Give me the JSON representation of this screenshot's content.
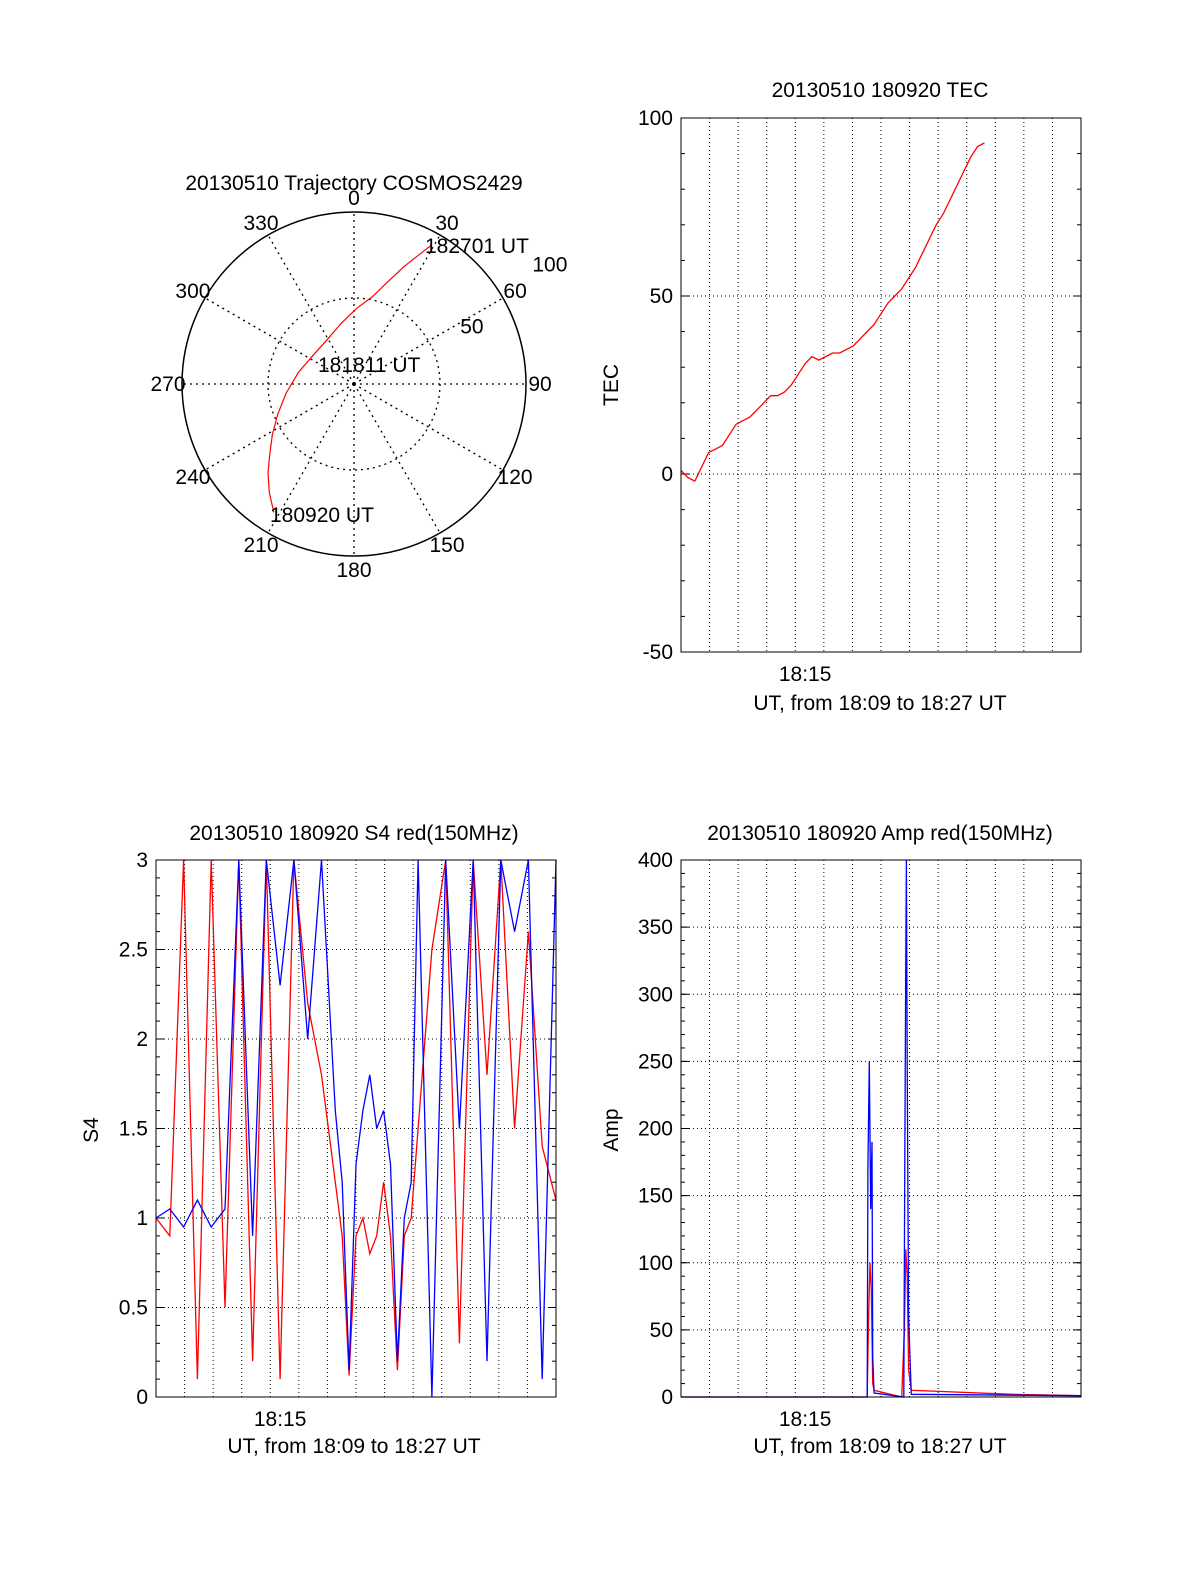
{
  "colors": {
    "red": "#ff0000",
    "blue": "#0000ff",
    "grid": "#000000",
    "background": "#ffffff"
  },
  "chart_data": [
    {
      "id": "trajectory",
      "type": "polar",
      "title": "20130510 Trajectory COSMOS2429",
      "angle_labels": [
        "0",
        "30",
        "60",
        "90",
        "120",
        "150",
        "180",
        "210",
        "240",
        "270",
        "300",
        "330"
      ],
      "angle_values": [
        0,
        30,
        60,
        90,
        120,
        150,
        180,
        210,
        240,
        270,
        300,
        330
      ],
      "radial_labels": [
        "50",
        "100"
      ],
      "radial_values": [
        50,
        100
      ],
      "radial_range": [
        0,
        100
      ],
      "series": [
        {
          "name": "trajectory",
          "color": "#ff0000",
          "points": [
            [
              212,
              88
            ],
            [
              218,
              80
            ],
            [
              224,
              72
            ],
            [
              230,
              64
            ],
            [
              238,
              56
            ],
            [
              248,
              48
            ],
            [
              262,
              40
            ],
            [
              282,
              33
            ],
            [
              306,
              29
            ],
            [
              328,
              30
            ],
            [
              348,
              36
            ],
            [
              2,
              44
            ],
            [
              12,
              52
            ],
            [
              18,
              62
            ],
            [
              23,
              74
            ],
            [
              27,
              85
            ],
            [
              29,
              92
            ]
          ]
        }
      ],
      "annotations": [
        {
          "text": "182701 UT",
          "at": "trajectory end"
        },
        {
          "text": "181811 UT",
          "at": "near center"
        },
        {
          "text": "180920 UT",
          "at": "trajectory start"
        }
      ]
    },
    {
      "id": "tec",
      "type": "line",
      "title": "20130510 180920 TEC",
      "xlabel": "UT, from 18:09 to 18:27 UT",
      "ylabel": "TEC",
      "xlim": [
        18.16,
        18.45
      ],
      "ylim": [
        -50,
        100
      ],
      "yticks": [
        "-50",
        "0",
        "50",
        "100"
      ],
      "ytick_values": [
        -50,
        0,
        50,
        100
      ],
      "xticks": [
        "18:15"
      ],
      "xtick_values": [
        18.25
      ],
      "grid": true,
      "series": [
        {
          "name": "TEC",
          "color": "#ff0000",
          "points": [
            [
              18.16,
              1
            ],
            [
              18.165,
              -1
            ],
            [
              18.17,
              -2
            ],
            [
              18.175,
              2
            ],
            [
              18.18,
              6
            ],
            [
              18.185,
              7
            ],
            [
              18.19,
              8
            ],
            [
              18.195,
              11
            ],
            [
              18.2,
              14
            ],
            [
              18.205,
              15
            ],
            [
              18.21,
              16
            ],
            [
              18.215,
              18
            ],
            [
              18.22,
              20
            ],
            [
              18.225,
              22
            ],
            [
              18.23,
              22
            ],
            [
              18.235,
              23
            ],
            [
              18.24,
              25
            ],
            [
              18.245,
              28
            ],
            [
              18.25,
              31
            ],
            [
              18.255,
              33
            ],
            [
              18.26,
              32
            ],
            [
              18.265,
              33
            ],
            [
              18.27,
              34
            ],
            [
              18.275,
              34
            ],
            [
              18.28,
              35
            ],
            [
              18.285,
              36
            ],
            [
              18.29,
              38
            ],
            [
              18.295,
              40
            ],
            [
              18.3,
              42
            ],
            [
              18.305,
              45
            ],
            [
              18.31,
              48
            ],
            [
              18.315,
              50
            ],
            [
              18.32,
              52
            ],
            [
              18.325,
              55
            ],
            [
              18.33,
              58
            ],
            [
              18.335,
              62
            ],
            [
              18.34,
              66
            ],
            [
              18.345,
              70
            ],
            [
              18.35,
              73
            ],
            [
              18.355,
              77
            ],
            [
              18.36,
              81
            ],
            [
              18.365,
              85
            ],
            [
              18.37,
              89
            ],
            [
              18.375,
              92
            ],
            [
              18.38,
              93
            ]
          ]
        }
      ]
    },
    {
      "id": "s4",
      "type": "line",
      "title": "20130510 180920 S4 red(150MHz)",
      "xlabel": "UT, from 18:09 to 18:27 UT",
      "ylabel": "S4",
      "xlim": [
        18.16,
        18.45
      ],
      "ylim": [
        0,
        3
      ],
      "yticks": [
        "0",
        "0.5",
        "1",
        "1.5",
        "2",
        "2.5",
        "3"
      ],
      "ytick_values": [
        0,
        0.5,
        1,
        1.5,
        2,
        2.5,
        3
      ],
      "xticks": [
        "18:15"
      ],
      "xtick_values": [
        18.25
      ],
      "grid": true,
      "series": [
        {
          "name": "red",
          "color": "#ff0000",
          "points": [
            [
              18.16,
              1.0
            ],
            [
              18.17,
              0.9
            ],
            [
              18.18,
              3.0
            ],
            [
              18.19,
              0.1
            ],
            [
              18.2,
              3.0
            ],
            [
              18.21,
              0.5
            ],
            [
              18.22,
              3.0
            ],
            [
              18.23,
              0.2
            ],
            [
              18.24,
              3.0
            ],
            [
              18.25,
              0.1
            ],
            [
              18.26,
              3.0
            ],
            [
              18.27,
              2.2
            ],
            [
              18.28,
              1.8
            ],
            [
              18.29,
              1.2
            ],
            [
              18.295,
              0.9
            ],
            [
              18.3,
              0.12
            ],
            [
              18.305,
              0.9
            ],
            [
              18.31,
              1.0
            ],
            [
              18.315,
              0.8
            ],
            [
              18.32,
              0.9
            ],
            [
              18.325,
              1.2
            ],
            [
              18.33,
              0.9
            ],
            [
              18.335,
              0.15
            ],
            [
              18.34,
              0.9
            ],
            [
              18.345,
              1.0
            ],
            [
              18.35,
              1.5
            ],
            [
              18.36,
              2.5
            ],
            [
              18.37,
              3.0
            ],
            [
              18.38,
              0.3
            ],
            [
              18.39,
              3.0
            ],
            [
              18.4,
              1.8
            ],
            [
              18.41,
              3.0
            ],
            [
              18.42,
              1.5
            ],
            [
              18.43,
              2.6
            ],
            [
              18.44,
              1.4
            ],
            [
              18.45,
              1.1
            ]
          ]
        },
        {
          "name": "blue",
          "color": "#0000ff",
          "points": [
            [
              18.16,
              1.0
            ],
            [
              18.17,
              1.05
            ],
            [
              18.18,
              0.95
            ],
            [
              18.19,
              1.1
            ],
            [
              18.2,
              0.95
            ],
            [
              18.21,
              1.05
            ],
            [
              18.22,
              3.0
            ],
            [
              18.23,
              0.9
            ],
            [
              18.24,
              3.0
            ],
            [
              18.25,
              2.3
            ],
            [
              18.26,
              3.0
            ],
            [
              18.27,
              2.0
            ],
            [
              18.28,
              3.0
            ],
            [
              18.29,
              1.6
            ],
            [
              18.295,
              1.2
            ],
            [
              18.3,
              0.15
            ],
            [
              18.305,
              1.3
            ],
            [
              18.31,
              1.6
            ],
            [
              18.315,
              1.8
            ],
            [
              18.32,
              1.5
            ],
            [
              18.325,
              1.6
            ],
            [
              18.33,
              1.3
            ],
            [
              18.335,
              0.2
            ],
            [
              18.34,
              1.0
            ],
            [
              18.345,
              1.2
            ],
            [
              18.35,
              3.0
            ],
            [
              18.36,
              0.0
            ],
            [
              18.37,
              3.0
            ],
            [
              18.38,
              1.5
            ],
            [
              18.39,
              3.0
            ],
            [
              18.4,
              0.2
            ],
            [
              18.41,
              3.0
            ],
            [
              18.42,
              2.6
            ],
            [
              18.43,
              3.0
            ],
            [
              18.44,
              0.1
            ],
            [
              18.45,
              3.0
            ]
          ]
        }
      ]
    },
    {
      "id": "amp",
      "type": "line",
      "title": "20130510 180920 Amp red(150MHz)",
      "xlabel": "UT, from 18:09 to 18:27 UT",
      "ylabel": "Amp",
      "xlim": [
        18.16,
        18.45
      ],
      "ylim": [
        0,
        400
      ],
      "yticks": [
        "0",
        "50",
        "100",
        "150",
        "200",
        "250",
        "300",
        "350",
        "400"
      ],
      "ytick_values": [
        0,
        50,
        100,
        150,
        200,
        250,
        300,
        350,
        400
      ],
      "xticks": [
        "18:15"
      ],
      "xtick_values": [
        18.25
      ],
      "grid": true,
      "series": [
        {
          "name": "red",
          "color": "#ff0000",
          "points": [
            [
              18.16,
              0
            ],
            [
              18.295,
              0
            ],
            [
              18.296,
              60
            ],
            [
              18.297,
              100
            ],
            [
              18.298,
              80
            ],
            [
              18.299,
              10
            ],
            [
              18.3,
              5
            ],
            [
              18.32,
              0
            ],
            [
              18.322,
              50
            ],
            [
              18.323,
              110
            ],
            [
              18.324,
              90
            ],
            [
              18.325,
              20
            ],
            [
              18.327,
              5
            ],
            [
              18.4,
              2
            ],
            [
              18.45,
              1
            ]
          ]
        },
        {
          "name": "blue",
          "color": "#0000ff",
          "points": [
            [
              18.16,
              0
            ],
            [
              18.295,
              0
            ],
            [
              18.2955,
              170
            ],
            [
              18.2965,
              250
            ],
            [
              18.2975,
              140
            ],
            [
              18.2985,
              190
            ],
            [
              18.299,
              30
            ],
            [
              18.3,
              3
            ],
            [
              18.3215,
              0
            ],
            [
              18.3222,
              160
            ],
            [
              18.3228,
              300
            ],
            [
              18.3234,
              400
            ],
            [
              18.324,
              250
            ],
            [
              18.3246,
              140
            ],
            [
              18.325,
              60
            ],
            [
              18.327,
              2
            ],
            [
              18.45,
              1
            ]
          ]
        }
      ]
    }
  ]
}
